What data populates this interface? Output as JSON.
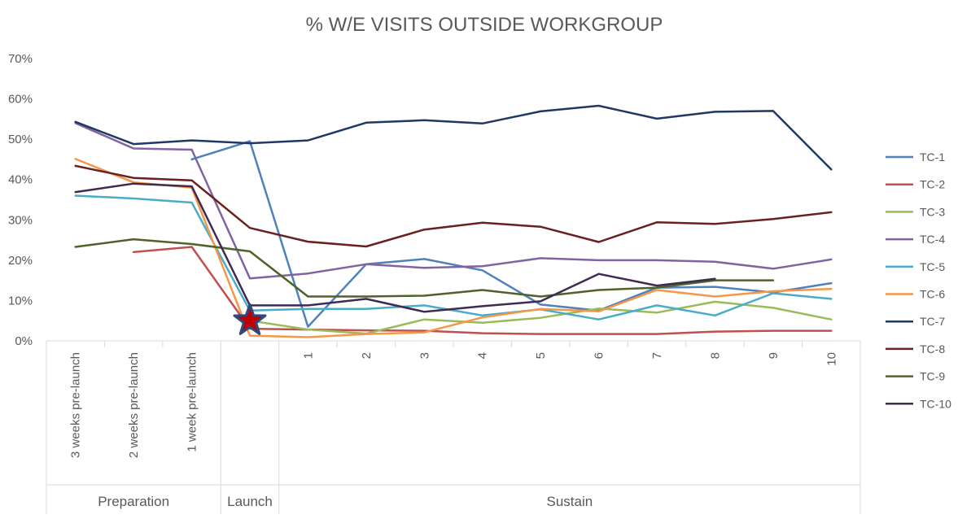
{
  "chart_data": {
    "type": "line",
    "title": "% W/E VISITS OUTSIDE WORKGROUP",
    "ylim": [
      0,
      0.7
    ],
    "yticks": [
      "0%",
      "10%",
      "20%",
      "30%",
      "40%",
      "50%",
      "60%",
      "70%"
    ],
    "categories": [
      "3 weeks pre-launch",
      "2 weeks pre-launch",
      "1 week pre-launch",
      "",
      "1",
      "2",
      "3",
      "4",
      "5",
      "6",
      "7",
      "8",
      "9",
      "10"
    ],
    "groups": [
      {
        "label": "Preparation",
        "span": 3
      },
      {
        "label": "Launch",
        "span": 1
      },
      {
        "label": "Sustain",
        "span": 10
      }
    ],
    "legend_position": "right",
    "launch_marker": {
      "symbol": "star",
      "category_index": 3,
      "value": 0.05,
      "fill": "#c00000",
      "stroke": "#2e4a7d"
    },
    "series": [
      {
        "name": "TC-1",
        "color": "#4f81bd",
        "values": [
          null,
          null,
          0.45,
          0.495,
          0.035,
          0.19,
          0.203,
          0.175,
          0.09,
          0.075,
          0.132,
          0.134,
          0.12,
          0.143
        ]
      },
      {
        "name": "TC-2",
        "color": "#c0504d",
        "values": [
          null,
          0.22,
          0.233,
          0.03,
          0.028,
          0.026,
          0.025,
          0.019,
          0.017,
          0.017,
          0.017,
          0.023,
          0.025,
          0.025
        ]
      },
      {
        "name": "TC-3",
        "color": "#9bbb59",
        "values": [
          null,
          null,
          null,
          0.05,
          0.028,
          0.018,
          0.053,
          0.045,
          0.057,
          0.08,
          0.07,
          0.097,
          0.082,
          0.053
        ]
      },
      {
        "name": "TC-4",
        "color": "#8064a2",
        "values": [
          0.54,
          0.477,
          0.474,
          0.155,
          0.167,
          0.19,
          0.181,
          0.185,
          0.205,
          0.2,
          0.2,
          0.196,
          0.179,
          0.202
        ]
      },
      {
        "name": "TC-5",
        "color": "#4bacc6",
        "values": [
          0.36,
          0.353,
          0.343,
          0.075,
          0.079,
          0.079,
          0.088,
          0.063,
          0.078,
          0.053,
          0.088,
          0.063,
          0.118,
          0.104
        ]
      },
      {
        "name": "TC-6",
        "color": "#f79646",
        "values": [
          0.451,
          0.393,
          0.38,
          0.013,
          0.009,
          0.017,
          0.021,
          0.058,
          0.079,
          0.073,
          0.126,
          0.11,
          0.123,
          0.129
        ]
      },
      {
        "name": "TC-7",
        "color": "#1f3864",
        "values": [
          0.543,
          0.488,
          0.497,
          0.49,
          0.497,
          0.541,
          0.547,
          0.539,
          0.569,
          0.583,
          0.551,
          0.568,
          0.57,
          0.425
        ]
      },
      {
        "name": "TC-8",
        "color": "#6b2020",
        "values": [
          0.434,
          0.404,
          0.398,
          0.28,
          0.246,
          0.234,
          0.276,
          0.293,
          0.283,
          0.245,
          0.294,
          0.29,
          0.302,
          0.319
        ]
      },
      {
        "name": "TC-9",
        "color": "#4f6228",
        "values": [
          0.233,
          0.252,
          0.24,
          0.222,
          0.11,
          0.11,
          0.112,
          0.126,
          0.11,
          0.126,
          0.132,
          0.15,
          0.15,
          null
        ]
      },
      {
        "name": "TC-10",
        "color": "#3f2a52",
        "values": [
          0.369,
          0.39,
          0.383,
          0.088,
          0.088,
          0.104,
          0.072,
          0.086,
          0.098,
          0.166,
          0.137,
          0.154,
          null,
          null
        ]
      }
    ]
  }
}
